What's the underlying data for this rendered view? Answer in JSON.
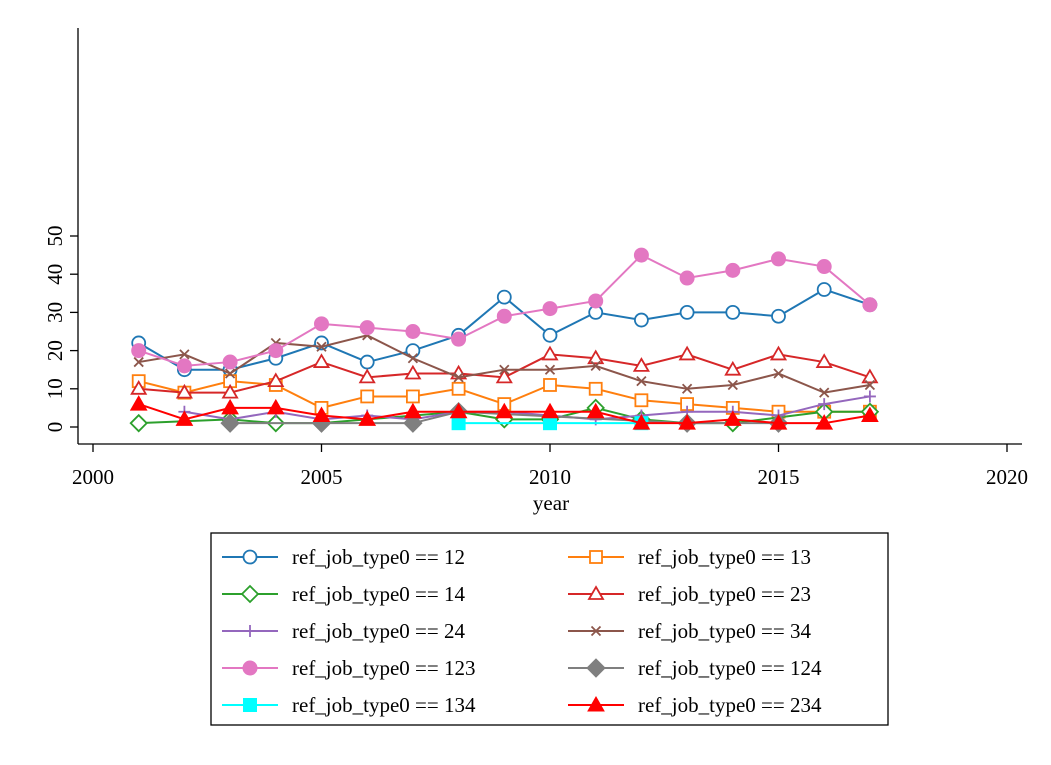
{
  "chart_data": {
    "type": "line",
    "title": "",
    "xlabel": "year",
    "ylabel": "",
    "xlim": [
      2000,
      2020
    ],
    "ylim": [
      0,
      50
    ],
    "x_ticks": [
      "2000",
      "2005",
      "2010",
      "2015",
      "2020"
    ],
    "y_ticks": [
      "0",
      "10",
      "20",
      "30",
      "40",
      "50"
    ],
    "grid": false,
    "legend_position": "bottom",
    "series": [
      {
        "name": "ref_job_type0 == 12",
        "color": "#1f77b4",
        "marker": "circle-open",
        "x": [
          2001,
          2002,
          2003,
          2004,
          2005,
          2006,
          2007,
          2008,
          2009,
          2010,
          2011,
          2012,
          2013,
          2014,
          2015,
          2016,
          2017
        ],
        "values": [
          22,
          15,
          15,
          18,
          22,
          17,
          20,
          24,
          34,
          24,
          30,
          28,
          30,
          30,
          29,
          36,
          32
        ]
      },
      {
        "name": "ref_job_type0 == 13",
        "color": "#ff7f0e",
        "marker": "square-open",
        "x": [
          2001,
          2002,
          2003,
          2004,
          2005,
          2006,
          2007,
          2008,
          2009,
          2010,
          2011,
          2012,
          2013,
          2014,
          2015,
          2016,
          2017
        ],
        "values": [
          12,
          9,
          12,
          11,
          5,
          8,
          8,
          10,
          6,
          11,
          10,
          7,
          6,
          5,
          4,
          4,
          4
        ]
      },
      {
        "name": "ref_job_type0 == 14",
        "color": "#2ca02c",
        "marker": "diamond-open",
        "x": [
          2001,
          2003,
          2004,
          2005,
          2008,
          2009,
          2010,
          2011,
          2012,
          2013,
          2014,
          2016,
          2017
        ],
        "values": [
          1,
          2,
          1,
          1,
          4,
          2,
          2,
          5,
          2,
          1,
          1,
          4,
          4
        ]
      },
      {
        "name": "ref_job_type0 == 23",
        "color": "#d62728",
        "marker": "triangle-open",
        "x": [
          2001,
          2002,
          2003,
          2004,
          2005,
          2006,
          2007,
          2008,
          2009,
          2010,
          2011,
          2012,
          2013,
          2014,
          2015,
          2016,
          2017
        ],
        "values": [
          10,
          9,
          9,
          12,
          17,
          13,
          14,
          14,
          13,
          19,
          18,
          16,
          19,
          15,
          19,
          17,
          13
        ]
      },
      {
        "name": "ref_job_type0 == 24",
        "color": "#9467bd",
        "marker": "plus",
        "x": [
          2002,
          2003,
          2004,
          2005,
          2006,
          2007,
          2008,
          2009,
          2010,
          2011,
          2012,
          2013,
          2014,
          2015,
          2016,
          2017
        ],
        "values": [
          4,
          2,
          4,
          2,
          3,
          2,
          4,
          4,
          3,
          2,
          3,
          4,
          4,
          3,
          6,
          8
        ]
      },
      {
        "name": "ref_job_type0 == 34",
        "color": "#8c564b",
        "marker": "x",
        "x": [
          2001,
          2002,
          2003,
          2004,
          2005,
          2006,
          2007,
          2008,
          2009,
          2010,
          2011,
          2012,
          2013,
          2014,
          2015,
          2016,
          2017
        ],
        "values": [
          17,
          19,
          14,
          22,
          21,
          24,
          18,
          13,
          15,
          15,
          16,
          12,
          10,
          11,
          14,
          9,
          11
        ]
      },
      {
        "name": "ref_job_type0 == 123",
        "color": "#e377c2",
        "marker": "circle",
        "x": [
          2001,
          2002,
          2003,
          2004,
          2005,
          2006,
          2007,
          2008,
          2009,
          2010,
          2011,
          2012,
          2013,
          2014,
          2015,
          2016,
          2017
        ],
        "values": [
          20,
          16,
          17,
          20,
          27,
          26,
          25,
          23,
          29,
          31,
          33,
          45,
          39,
          41,
          44,
          42,
          32
        ]
      },
      {
        "name": "ref_job_type0 == 124",
        "color": "#7f7f7f",
        "marker": "diamond",
        "x": [
          2003,
          2005,
          2007,
          2008,
          2013,
          2015
        ],
        "values": [
          1,
          1,
          1,
          4,
          1,
          1
        ]
      },
      {
        "name": "ref_job_type0 == 134",
        "color": "#00ffff",
        "marker": "square",
        "x": [
          2008,
          2010,
          2012
        ],
        "values": [
          1,
          1,
          1
        ]
      },
      {
        "name": "ref_job_type0 == 234",
        "color": "#ff0000",
        "marker": "triangle",
        "x": [
          2001,
          2002,
          2003,
          2004,
          2005,
          2006,
          2007,
          2008,
          2009,
          2010,
          2011,
          2012,
          2013,
          2014,
          2015,
          2016,
          2017
        ],
        "values": [
          6,
          2,
          5,
          5,
          3,
          2,
          4,
          4,
          4,
          4,
          4,
          1,
          1,
          2,
          1,
          1,
          3
        ]
      }
    ]
  }
}
